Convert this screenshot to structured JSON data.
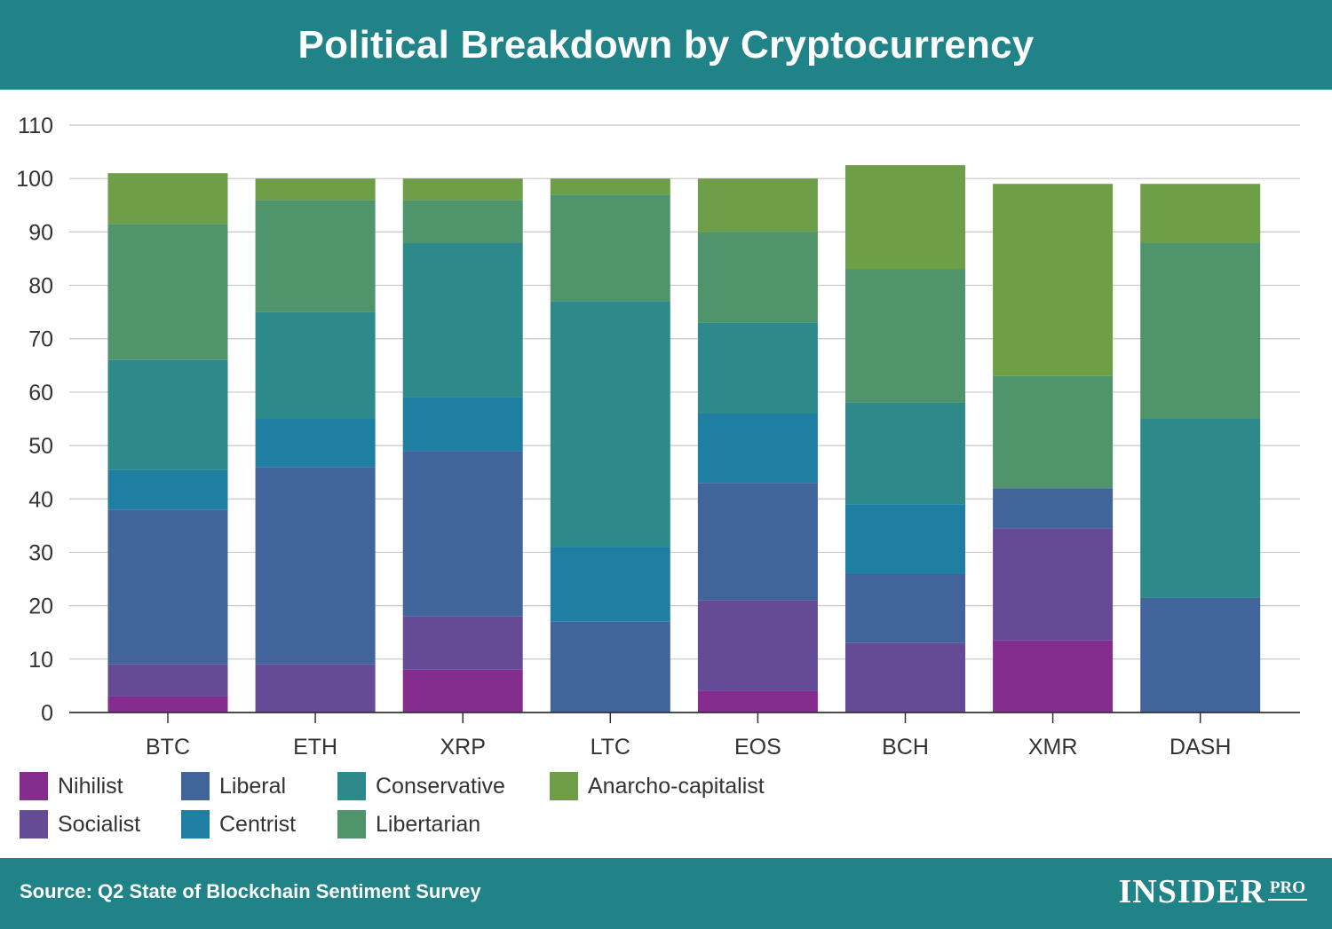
{
  "header": {
    "title": "Political Breakdown by Cryptocurrency"
  },
  "footer": {
    "source": "Source: Q2 State of Blockchain Sentiment Survey",
    "brand": "INSIDER",
    "brand_suffix": "PRO"
  },
  "colors": {
    "header_bg": "#1f8388",
    "Nihilist": "#842d8f",
    "Socialist": "#654a95",
    "Liberal": "#41649b",
    "Centrist": "#1e7fa3",
    "Conservative": "#2e8a8a",
    "Libertarian": "#4f946a",
    "Anarcho-capitalist": "#6f9e48"
  },
  "chart_data": {
    "type": "bar",
    "stacked": true,
    "categories": [
      "BTC",
      "ETH",
      "XRP",
      "LTC",
      "EOS",
      "BCH",
      "XMR",
      "DASH"
    ],
    "series": [
      {
        "name": "Nihilist",
        "values": [
          3,
          0,
          8,
          0,
          4,
          0,
          13.5,
          0
        ]
      },
      {
        "name": "Socialist",
        "values": [
          6,
          9,
          10,
          0,
          17,
          13,
          21,
          0
        ]
      },
      {
        "name": "Liberal",
        "values": [
          29,
          37,
          31,
          17,
          22,
          13,
          7.5,
          21.5
        ]
      },
      {
        "name": "Centrist",
        "values": [
          7.5,
          9,
          10,
          14,
          13,
          13,
          0,
          0
        ]
      },
      {
        "name": "Conservative",
        "values": [
          20.5,
          20,
          29,
          46,
          17,
          19,
          0,
          33.5
        ]
      },
      {
        "name": "Libertarian",
        "values": [
          25.5,
          21,
          8,
          20,
          17,
          25,
          21,
          33
        ]
      },
      {
        "name": "Anarcho-capitalist",
        "values": [
          9.5,
          4,
          4,
          3,
          10,
          19.5,
          36,
          11
        ]
      }
    ],
    "ylim": [
      0,
      110
    ],
    "yticks": [
      0,
      10,
      20,
      30,
      40,
      50,
      60,
      70,
      80,
      90,
      100,
      110
    ],
    "grid": true,
    "legend_position": "bottom-left",
    "xlabel": "",
    "ylabel": ""
  },
  "legend": [
    {
      "name": "Nihilist"
    },
    {
      "name": "Liberal"
    },
    {
      "name": "Conservative"
    },
    {
      "name": "Anarcho-capitalist"
    },
    {
      "name": "Socialist"
    },
    {
      "name": "Centrist"
    },
    {
      "name": "Libertarian"
    }
  ]
}
